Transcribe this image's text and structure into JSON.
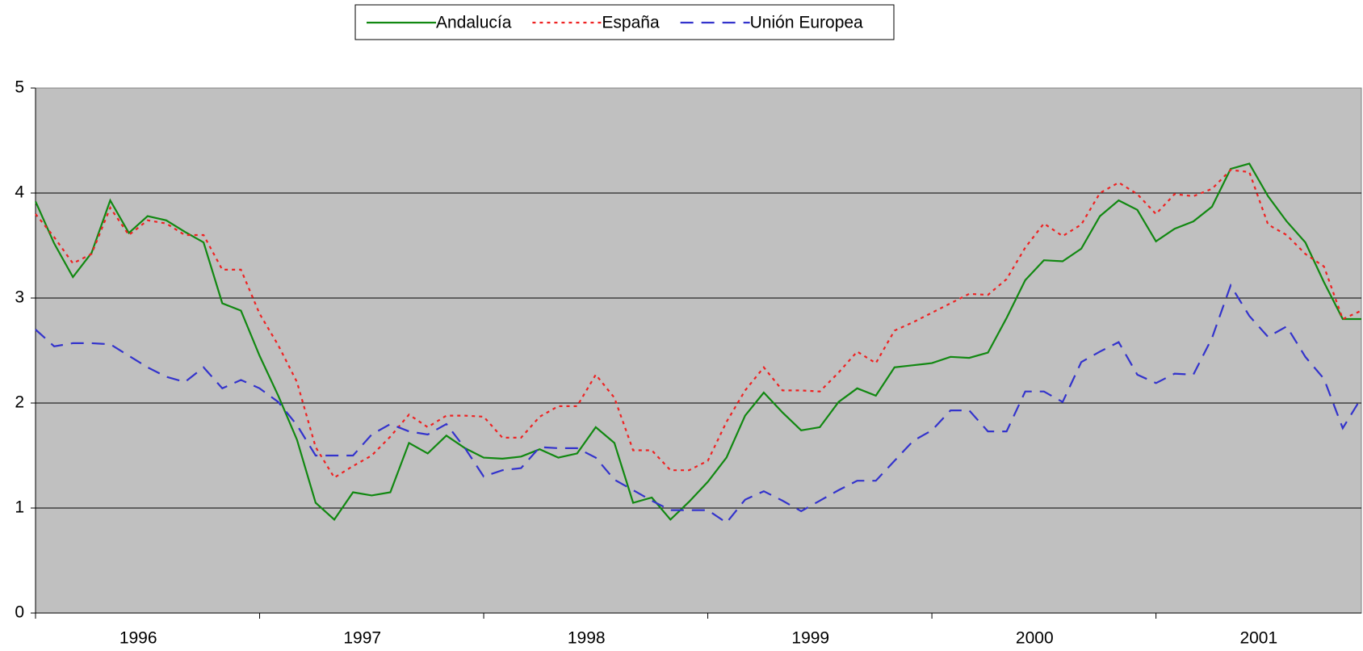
{
  "chart_data": {
    "type": "line",
    "x_labels": [
      "1996",
      "1997",
      "1998",
      "1999",
      "2000",
      "2001"
    ],
    "ylim": [
      0,
      5
    ],
    "yticks": [
      0,
      1,
      2,
      3,
      4,
      5
    ],
    "grid": true,
    "legend": "top",
    "series": [
      {
        "name": "Andalucía",
        "color": "#118811",
        "dash": "solid",
        "values": [
          3.92,
          3.52,
          3.2,
          3.43,
          3.93,
          3.62,
          3.78,
          3.74,
          3.63,
          3.53,
          2.95,
          2.88,
          2.45,
          2.07,
          1.65,
          1.05,
          0.89,
          1.15,
          1.12,
          1.15,
          1.62,
          1.52,
          1.69,
          1.57,
          1.48,
          1.47,
          1.49,
          1.56,
          1.48,
          1.52,
          1.77,
          1.62,
          1.05,
          1.1,
          0.89,
          1.06,
          1.25,
          1.48,
          1.88,
          2.1,
          1.91,
          1.74,
          1.77,
          2.01,
          2.14,
          2.07,
          2.34,
          2.36,
          2.38,
          2.44,
          2.43,
          2.48,
          2.81,
          3.17,
          3.36,
          3.35,
          3.47,
          3.78,
          3.93,
          3.84,
          3.54,
          3.66,
          3.73,
          3.87,
          4.23,
          4.28,
          3.97,
          3.73,
          3.53,
          3.15,
          2.8,
          2.8
        ]
      },
      {
        "name": "España",
        "color": "#ee2222",
        "dash": "dotted",
        "values": [
          3.8,
          3.58,
          3.33,
          3.42,
          3.86,
          3.6,
          3.74,
          3.71,
          3.6,
          3.6,
          3.27,
          3.27,
          2.85,
          2.55,
          2.2,
          1.58,
          1.29,
          1.4,
          1.5,
          1.68,
          1.89,
          1.77,
          1.88,
          1.88,
          1.87,
          1.67,
          1.67,
          1.87,
          1.97,
          1.97,
          2.27,
          2.05,
          1.55,
          1.55,
          1.36,
          1.36,
          1.45,
          1.82,
          2.12,
          2.34,
          2.12,
          2.12,
          2.11,
          2.29,
          2.49,
          2.38,
          2.69,
          2.77,
          2.86,
          2.95,
          3.04,
          3.03,
          3.18,
          3.48,
          3.71,
          3.59,
          3.7,
          4.0,
          4.1,
          3.99,
          3.8,
          3.99,
          3.97,
          4.04,
          4.22,
          4.2,
          3.7,
          3.6,
          3.42,
          3.3,
          2.8,
          2.88
        ]
      },
      {
        "name": "Unión Europea",
        "color": "#3333cc",
        "dash": "dashed",
        "values": [
          2.7,
          2.54,
          2.57,
          2.57,
          2.56,
          2.45,
          2.34,
          2.25,
          2.2,
          2.34,
          2.14,
          2.22,
          2.14,
          2.01,
          1.79,
          1.5,
          1.5,
          1.5,
          1.7,
          1.8,
          1.73,
          1.7,
          1.8,
          1.57,
          1.3,
          1.36,
          1.38,
          1.58,
          1.57,
          1.57,
          1.48,
          1.27,
          1.17,
          1.07,
          0.98,
          0.98,
          0.98,
          0.86,
          1.08,
          1.16,
          1.07,
          0.97,
          1.07,
          1.17,
          1.26,
          1.26,
          1.45,
          1.64,
          1.74,
          1.93,
          1.93,
          1.73,
          1.73,
          2.11,
          2.11,
          2.01,
          2.39,
          2.49,
          2.58,
          2.27,
          2.19,
          2.28,
          2.27,
          2.62,
          3.12,
          2.83,
          2.63,
          2.73,
          2.44,
          2.23,
          1.76,
          2.05
        ]
      }
    ]
  }
}
